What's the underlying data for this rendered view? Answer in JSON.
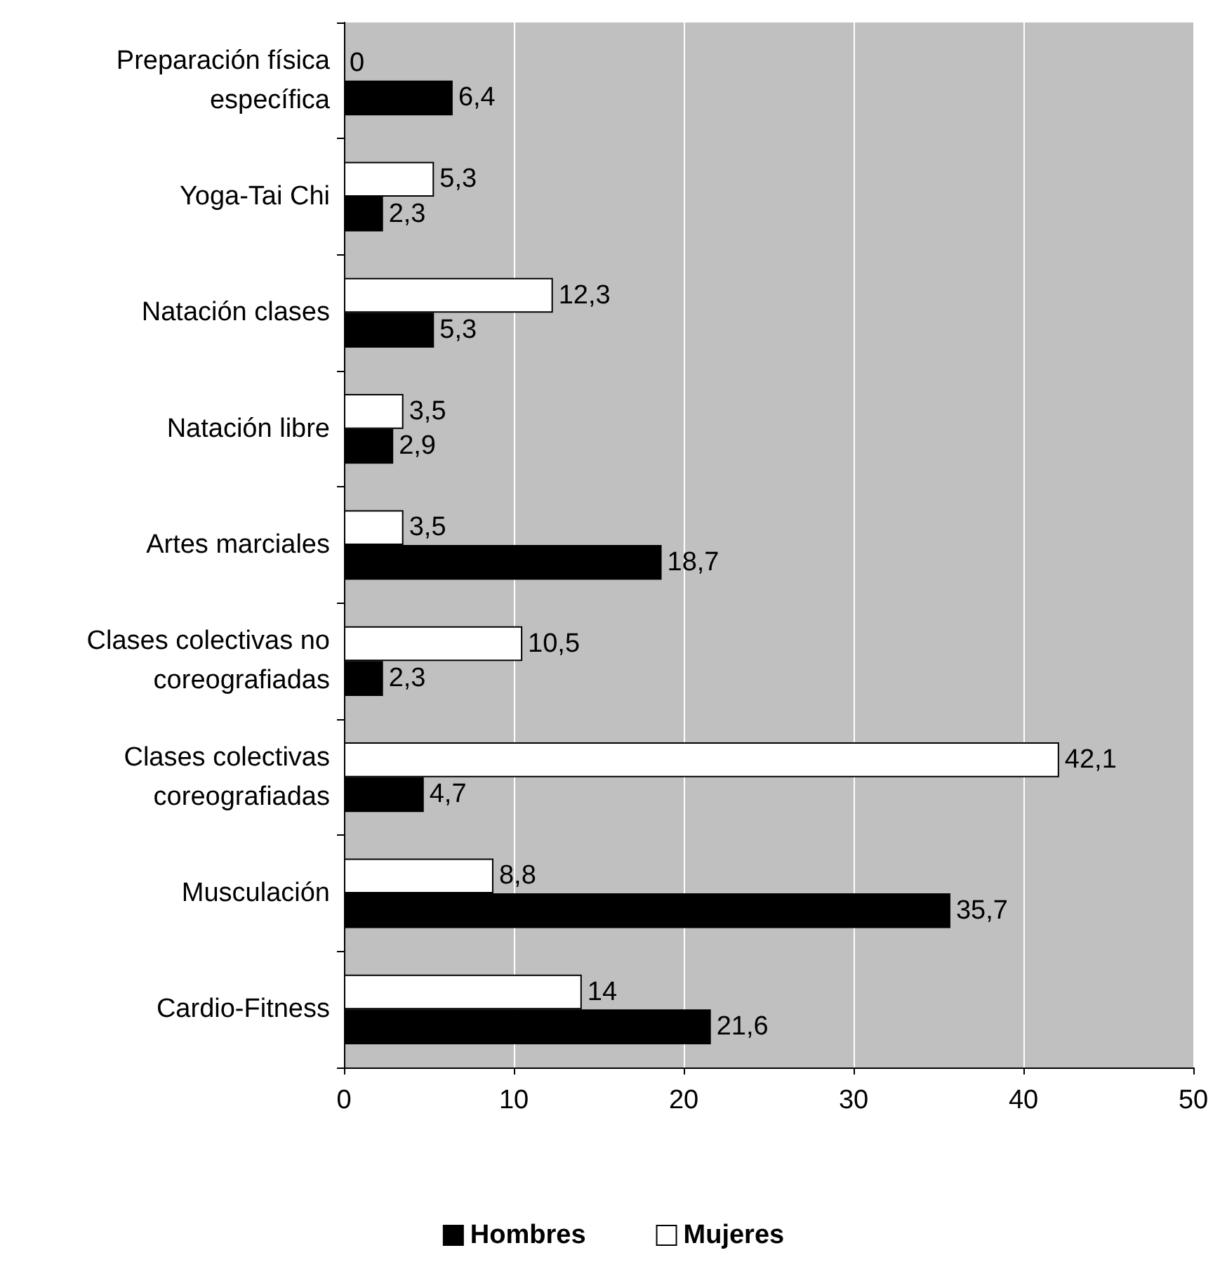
{
  "chart_data": {
    "type": "bar",
    "orientation": "horizontal",
    "categories": [
      "Preparación física específica",
      "Yoga-Tai Chi",
      "Natación clases",
      "Natación libre",
      "Artes marciales",
      "Clases colectivas no coreografiadas",
      "Clases colectivas coreografiadas",
      "Musculación",
      "Cardio-Fitness"
    ],
    "series": [
      {
        "name": "Mujeres",
        "color": "#ffffff",
        "values": [
          0,
          5.3,
          12.3,
          3.5,
          3.5,
          10.5,
          42.1,
          8.8,
          14
        ],
        "value_labels": [
          "0",
          "5,3",
          "12,3",
          "3,5",
          "3,5",
          "10,5",
          "42,1",
          "8,8",
          "14"
        ]
      },
      {
        "name": "Hombres",
        "color": "#000000",
        "values": [
          6.4,
          2.3,
          5.3,
          2.9,
          18.7,
          2.3,
          4.7,
          35.7,
          21.6
        ],
        "value_labels": [
          "6,4",
          "2,3",
          "5,3",
          "2,9",
          "18,7",
          "2,3",
          "4,7",
          "35,7",
          "21,6"
        ]
      }
    ],
    "xlim": [
      0,
      50
    ],
    "xticks": [
      0,
      10,
      20,
      30,
      40,
      50
    ],
    "grid": "x",
    "legend": "bottom"
  }
}
